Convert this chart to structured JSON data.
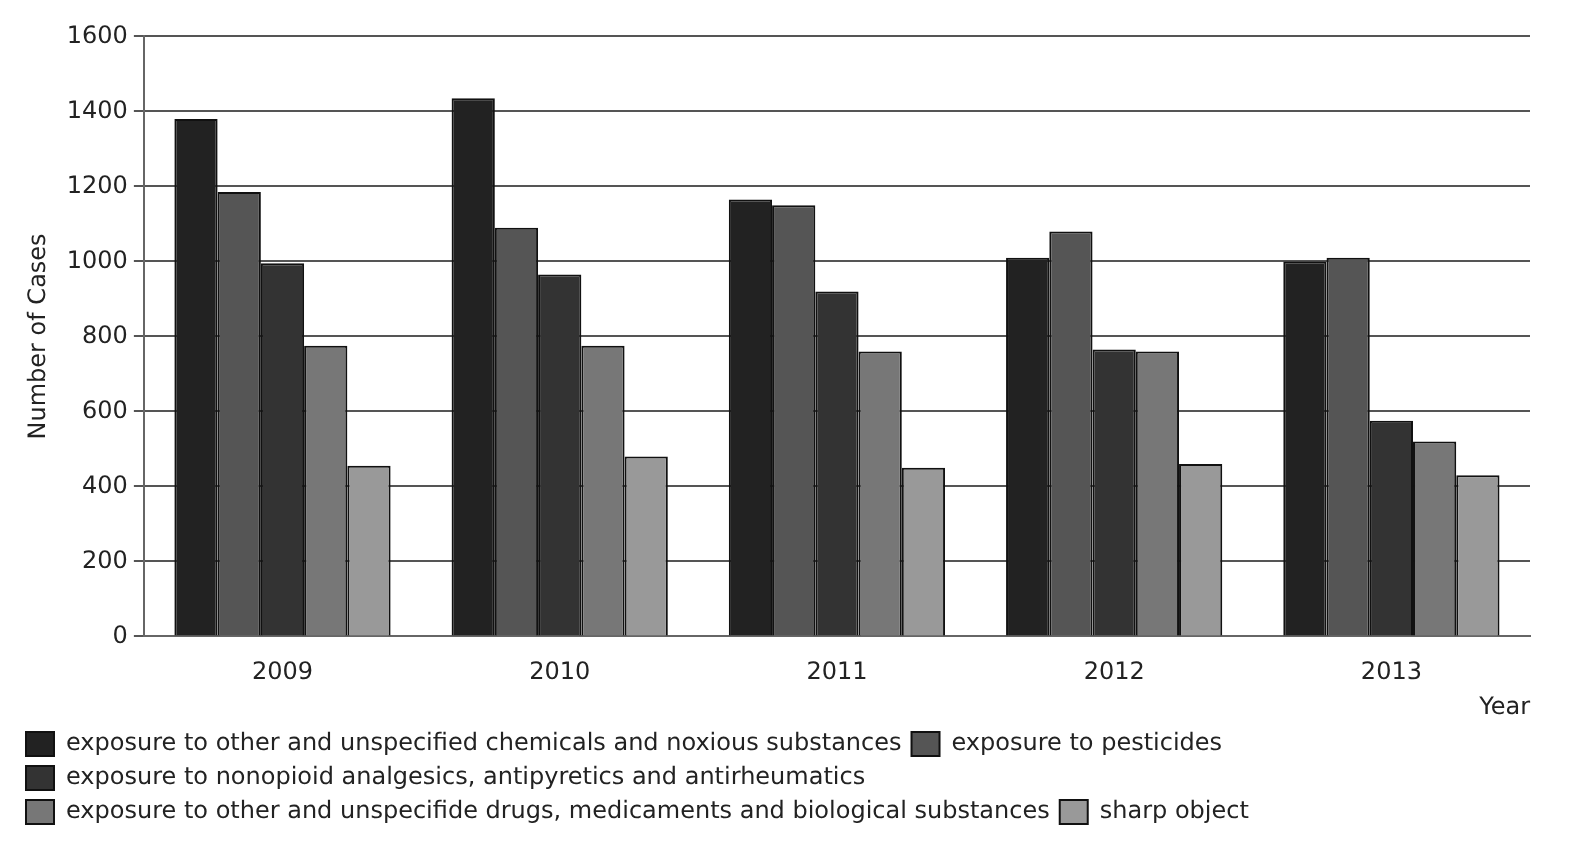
{
  "chart_data": {
    "type": "bar",
    "xlabel": "Year",
    "ylabel": "Number of Cases",
    "categories": [
      "2009",
      "2010",
      "2011",
      "2012",
      "2013"
    ],
    "series": [
      {
        "name": "exposure to other and unspecified chemicals and noxious substances",
        "color": "#222222",
        "values": [
          1380,
          1435,
          1165,
          1010,
          1000
        ]
      },
      {
        "name": "exposure to pesticides",
        "color": "#555555",
        "values": [
          1185,
          1090,
          1150,
          1080,
          1010
        ]
      },
      {
        "name": "exposure to nonopioid analgesics, antipyretics and antirheumatics",
        "color": "#333333",
        "values": [
          995,
          965,
          920,
          765,
          575
        ]
      },
      {
        "name": "exposure to other and unspecifide drugs, medicaments and biological substances",
        "color": "#777777",
        "values": [
          775,
          775,
          760,
          760,
          520
        ]
      },
      {
        "name": "sharp object",
        "color": "#999999",
        "values": [
          455,
          480,
          450,
          460,
          430
        ]
      }
    ],
    "ylim": [
      0,
      1600
    ],
    "yticks": [
      0,
      200,
      400,
      600,
      800,
      1000,
      1200,
      1400,
      1600
    ],
    "grid": "y",
    "legend": "bottom left"
  }
}
